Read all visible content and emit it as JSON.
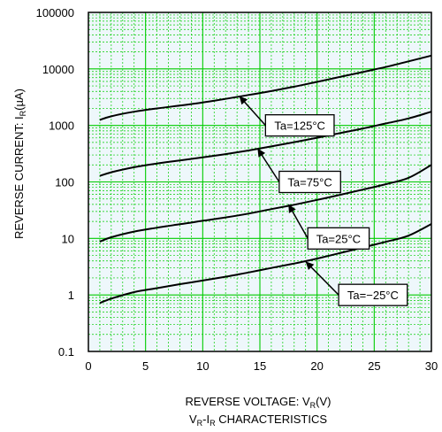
{
  "chart_data": {
    "type": "line",
    "title": "",
    "caption": {
      "base": "V",
      "sub1": "R",
      "mid": "-I",
      "sub2": "R",
      "rest": " CHARACTERISTICS"
    },
    "xlabel": {
      "base": "REVERSE VOLTAGE: V",
      "sub": "R",
      "rest": "(V)"
    },
    "ylabel": {
      "base": "REVERSE CURRENT: I",
      "sub": "R",
      "rest": "(µA)"
    },
    "xlim": [
      0,
      30
    ],
    "ylim": [
      0.1,
      100000
    ],
    "yscale": "log",
    "grid": true,
    "grid_color": "#00cc00",
    "background_color": "#eef7fb",
    "line_color": "#000000",
    "x_ticks": [
      "0",
      "5",
      "10",
      "15",
      "20",
      "25",
      "30"
    ],
    "y_ticks": [
      "0.1",
      "1",
      "10",
      "100",
      "1000",
      "10000",
      "100000"
    ],
    "x": [
      1,
      2,
      4,
      6,
      8,
      10,
      12,
      14,
      16,
      18,
      20,
      22,
      24,
      26,
      28,
      30
    ],
    "series": [
      {
        "name": "Ta=125°C",
        "values": [
          1250,
          1450,
          1750,
          2000,
          2250,
          2550,
          2950,
          3450,
          4050,
          4850,
          5900,
          7200,
          8800,
          10800,
          13600,
          17200
        ]
      },
      {
        "name": "Ta=75°C",
        "values": [
          128,
          148,
          182,
          212,
          240,
          272,
          310,
          360,
          425,
          505,
          605,
          730,
          880,
          1080,
          1330,
          1750
        ]
      },
      {
        "name": "Ta=25°C",
        "values": [
          8.8,
          10.5,
          13.2,
          15.5,
          17.8,
          20.5,
          23.5,
          27.5,
          33,
          39.5,
          48,
          59,
          73,
          91,
          118,
          200
        ]
      },
      {
        "name": "Ta=−25°C",
        "values": [
          0.72,
          0.86,
          1.12,
          1.32,
          1.55,
          1.8,
          2.1,
          2.5,
          3.0,
          3.6,
          4.4,
          5.5,
          6.9,
          8.7,
          11.2,
          18
        ]
      }
    ],
    "annotations": [
      {
        "label": "Ta=125°C",
        "x": 13.2,
        "y": 3300,
        "box_x": 15.8,
        "box_y": 1000
      },
      {
        "label": "Ta=75°C",
        "x": 14.8,
        "y": 390,
        "box_x": 17.0,
        "box_y": 100
      },
      {
        "label": "Ta=25°C",
        "x": 17.5,
        "y": 40,
        "box_x": 19.5,
        "box_y": 10
      },
      {
        "label": "Ta=−25°C",
        "x": 19,
        "y": 3.9,
        "box_x": 22.2,
        "box_y": 1
      }
    ]
  }
}
